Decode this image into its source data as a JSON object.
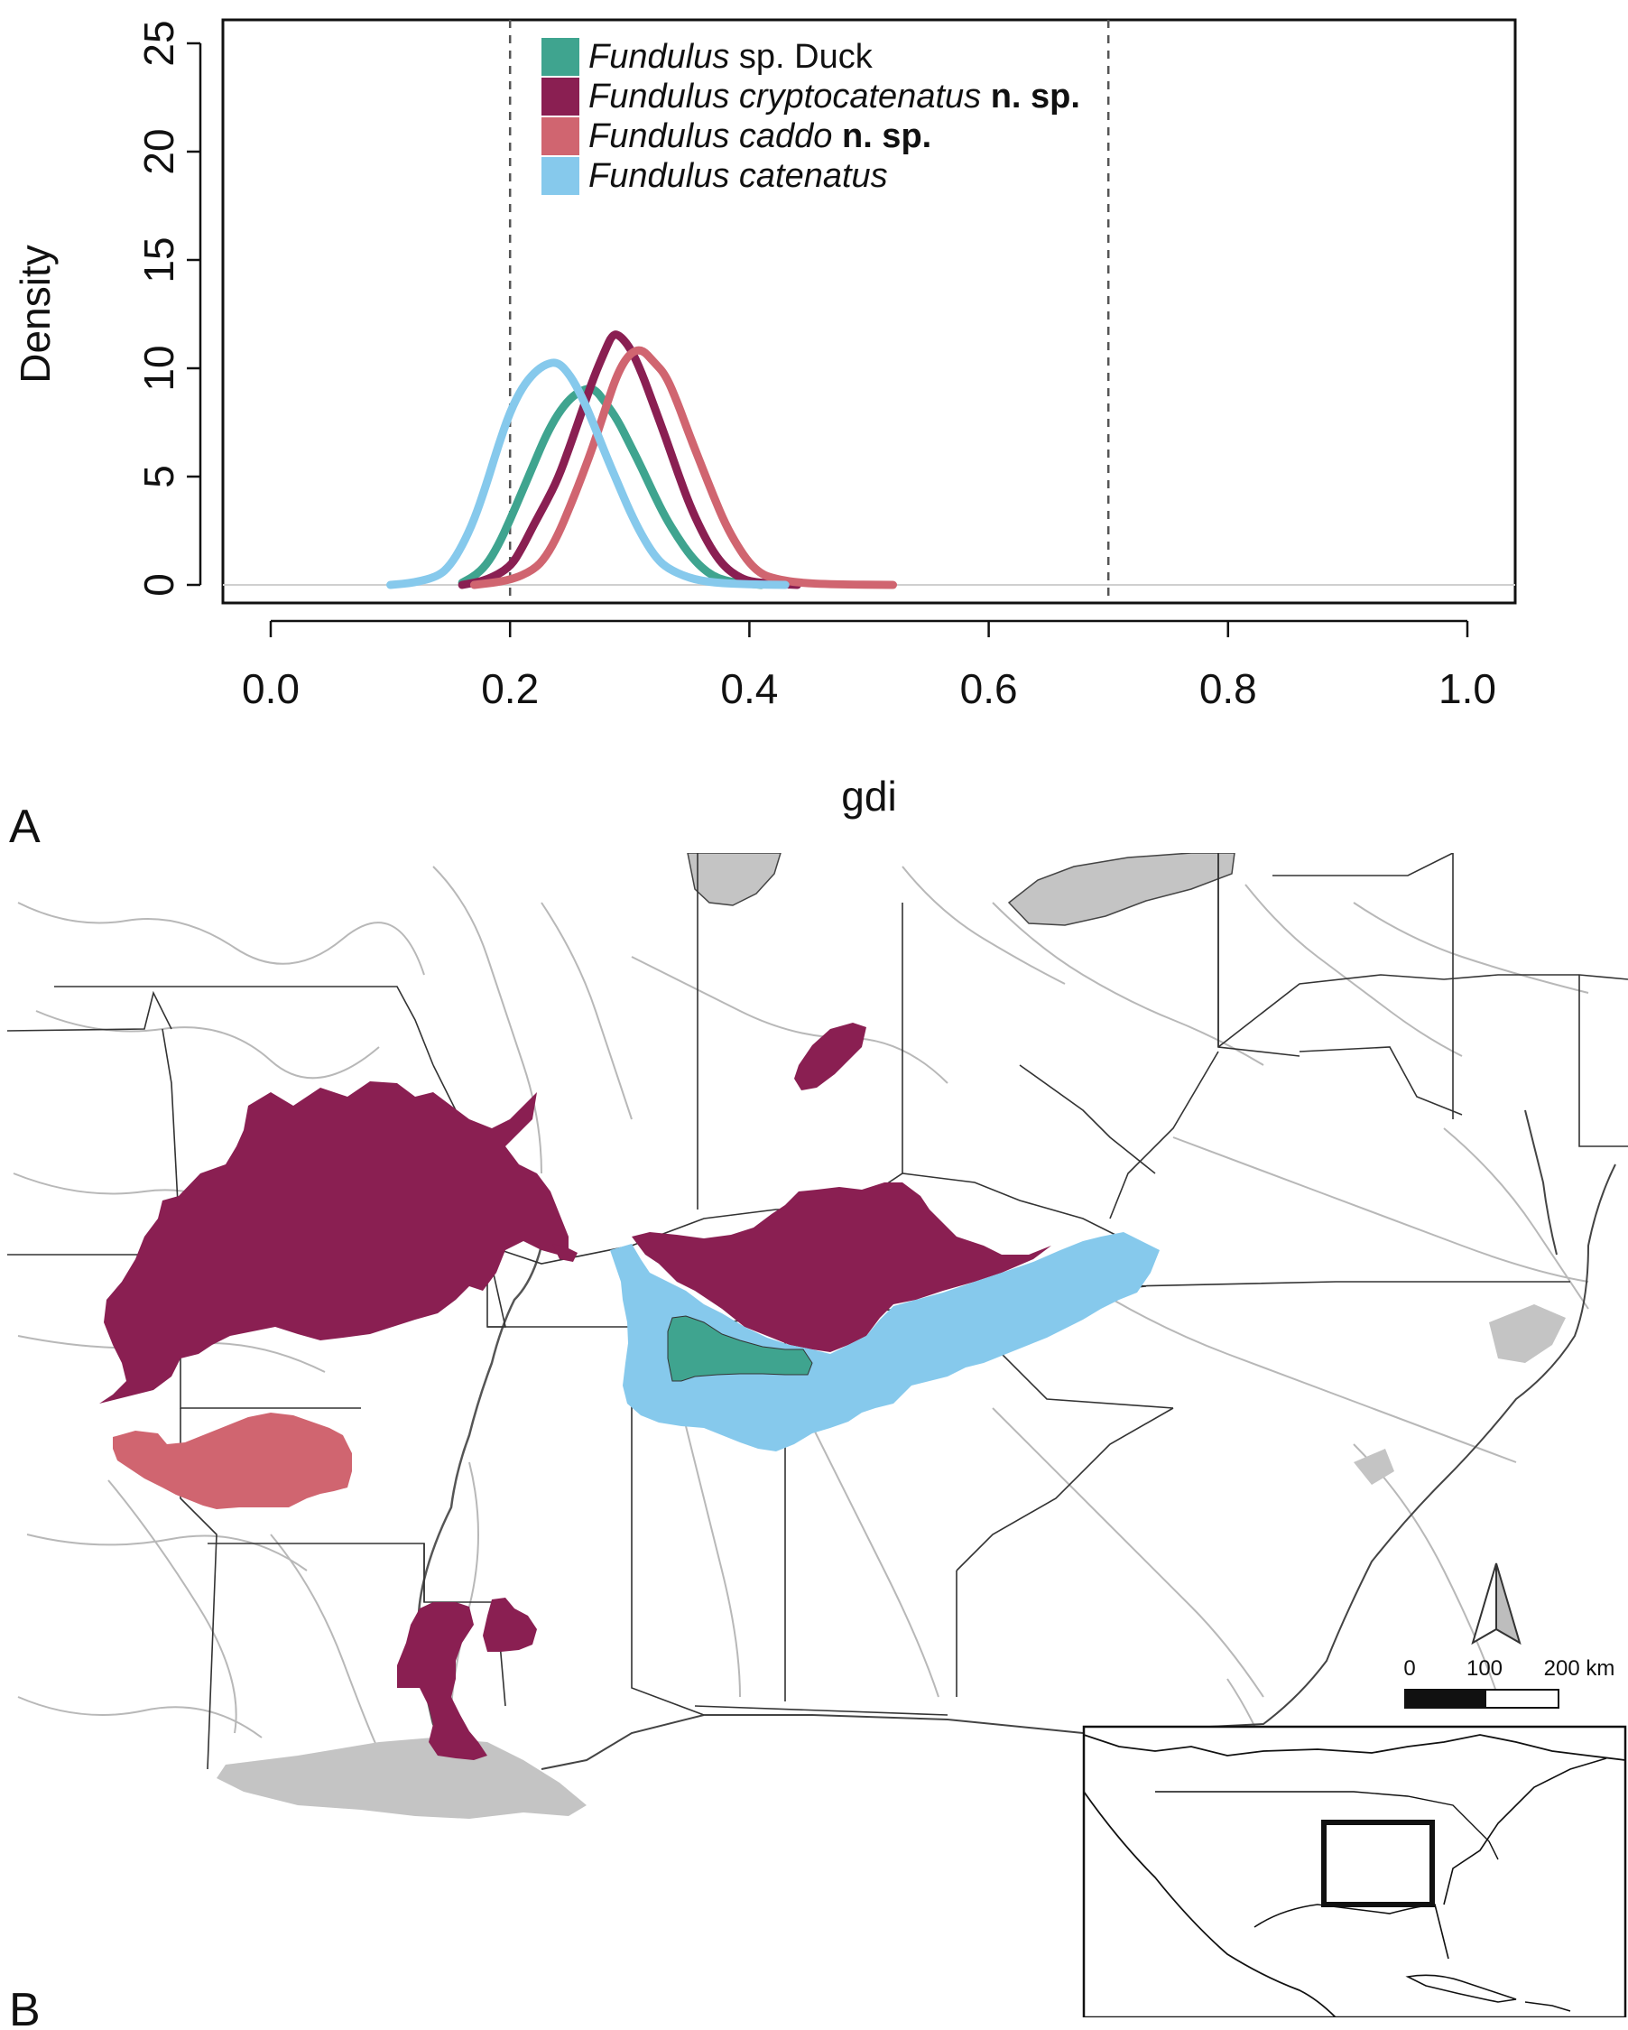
{
  "panels": {
    "a_label": "A",
    "b_label": "B"
  },
  "chart_data": {
    "type": "line",
    "xlabel": "gdi",
    "ylabel": "Density",
    "xlim": [
      -0.02,
      1.02
    ],
    "ylim": [
      0,
      25.5
    ],
    "x_ticks": [
      0.0,
      0.2,
      0.4,
      0.6,
      0.8,
      1.0
    ],
    "x_tick_labels": [
      "0.0",
      "0.2",
      "0.4",
      "0.6",
      "0.8",
      "1.0"
    ],
    "y_ticks": [
      0,
      5,
      10,
      15,
      20,
      25
    ],
    "y_tick_labels": [
      "0",
      "5",
      "10",
      "15",
      "20",
      "25"
    ],
    "reference_lines": [
      0.2,
      0.7
    ],
    "legend_position": "top-left",
    "grid": false,
    "series": [
      {
        "name": "Fundulus sp. Duck",
        "name_parts": [
          {
            "text": "Fundulus",
            "style": "italic"
          },
          {
            "text": " sp. Duck",
            "style": "normal"
          }
        ],
        "color": "#3fa48f",
        "x": [
          0.16,
          0.17,
          0.18,
          0.19,
          0.2,
          0.21,
          0.22,
          0.23,
          0.24,
          0.25,
          0.26,
          0.27,
          0.28,
          0.29,
          0.3,
          0.31,
          0.32,
          0.33,
          0.34,
          0.35,
          0.36,
          0.37,
          0.38,
          0.39,
          0.4,
          0.41
        ],
        "y": [
          0.1,
          0.4,
          0.9,
          1.8,
          3.0,
          4.3,
          5.6,
          6.9,
          7.9,
          8.6,
          9.0,
          9.1,
          8.4,
          7.6,
          6.5,
          5.4,
          4.2,
          3.1,
          2.2,
          1.4,
          0.8,
          0.4,
          0.2,
          0.1,
          0.05,
          0.0
        ]
      },
      {
        "name": "Fundulus cryptocatenatus n. sp.",
        "name_parts": [
          {
            "text": "Fundulus cryptocatenatus",
            "style": "italic"
          },
          {
            "text": " n. sp.",
            "style": "bold"
          }
        ],
        "color": "#8a1f52",
        "x": [
          0.16,
          0.18,
          0.2,
          0.21,
          0.22,
          0.23,
          0.24,
          0.25,
          0.26,
          0.27,
          0.28,
          0.285,
          0.29,
          0.3,
          0.31,
          0.32,
          0.33,
          0.34,
          0.35,
          0.36,
          0.37,
          0.38,
          0.39,
          0.4,
          0.42,
          0.44
        ],
        "y": [
          0.0,
          0.2,
          0.8,
          1.7,
          2.8,
          3.8,
          4.9,
          6.4,
          8.0,
          9.6,
          10.9,
          11.5,
          11.6,
          11.0,
          9.8,
          8.3,
          6.8,
          5.2,
          3.7,
          2.5,
          1.5,
          0.8,
          0.4,
          0.15,
          0.05,
          0.0
        ]
      },
      {
        "name": "Fundulus caddo n. sp.",
        "name_parts": [
          {
            "text": "Fundulus caddo",
            "style": "italic"
          },
          {
            "text": " n. sp.",
            "style": "bold"
          }
        ],
        "color": "#d06570",
        "x": [
          0.17,
          0.2,
          0.22,
          0.23,
          0.24,
          0.25,
          0.26,
          0.27,
          0.28,
          0.29,
          0.3,
          0.31,
          0.32,
          0.33,
          0.34,
          0.35,
          0.36,
          0.37,
          0.38,
          0.39,
          0.4,
          0.41,
          0.42,
          0.44,
          0.47,
          0.52
        ],
        "y": [
          0.0,
          0.2,
          0.7,
          1.3,
          2.3,
          3.6,
          5.0,
          6.5,
          8.2,
          9.8,
          10.7,
          10.9,
          10.3,
          9.7,
          8.4,
          6.9,
          5.5,
          4.1,
          2.8,
          1.8,
          1.0,
          0.5,
          0.3,
          0.1,
          0.02,
          0.0
        ]
      },
      {
        "name": "Fundulus catenatus",
        "name_parts": [
          {
            "text": "Fundulus catenatus",
            "style": "italic"
          }
        ],
        "color": "#86c9ec",
        "x": [
          0.1,
          0.12,
          0.14,
          0.15,
          0.16,
          0.17,
          0.18,
          0.19,
          0.2,
          0.21,
          0.22,
          0.23,
          0.24,
          0.25,
          0.26,
          0.27,
          0.28,
          0.29,
          0.3,
          0.31,
          0.32,
          0.33,
          0.35,
          0.37,
          0.4,
          0.43
        ],
        "y": [
          0.0,
          0.1,
          0.4,
          0.9,
          1.8,
          3.0,
          4.6,
          6.4,
          8.0,
          9.1,
          9.8,
          10.2,
          10.3,
          9.7,
          8.7,
          7.4,
          6.0,
          4.7,
          3.4,
          2.3,
          1.4,
          0.8,
          0.3,
          0.1,
          0.02,
          0.0
        ]
      }
    ]
  },
  "map": {
    "scale_labels": [
      "0",
      "100",
      "200 km"
    ],
    "colors": {
      "water": "#c4c4c4",
      "rivers": "#b8b8b8",
      "borders": "#333333",
      "duck": "#3fa48f",
      "cryptocatenatus": "#8a1f52",
      "caddo": "#d06570",
      "catenatus": "#86c9ec"
    }
  }
}
